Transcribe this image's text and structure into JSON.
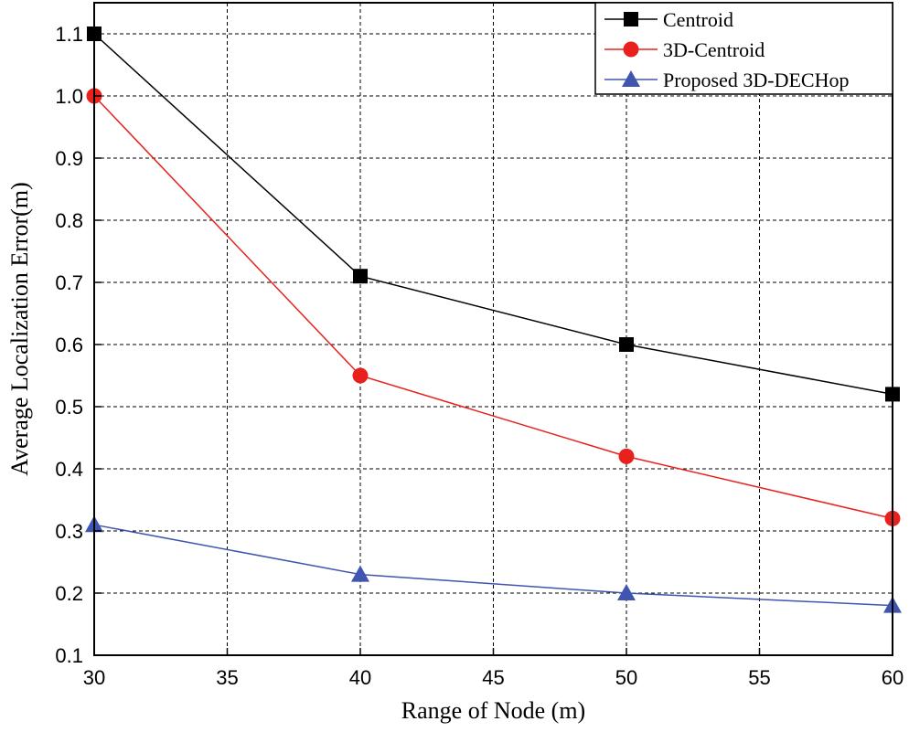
{
  "chart_data": {
    "type": "line",
    "title": "",
    "xlabel": "Range of Node (m)",
    "ylabel": "Average Localization Error(m)",
    "xlim": [
      30,
      60
    ],
    "ylim": [
      0.1,
      1.15
    ],
    "grid": true,
    "legend_position": "top-right",
    "xticks": [
      "30",
      "35",
      "40",
      "45",
      "50",
      "55",
      "60"
    ],
    "yticks": [
      "0.1",
      "0.2",
      "0.3",
      "0.4",
      "0.5",
      "0.6",
      "0.7",
      "0.8",
      "0.9",
      "1.0",
      "1.1"
    ],
    "x": [
      30,
      40,
      50,
      60
    ],
    "series": [
      {
        "name": "Centroid",
        "values": [
          1.1,
          0.71,
          0.6,
          0.52
        ],
        "color": "#000000",
        "marker": "square"
      },
      {
        "name": "3D-Centroid",
        "values": [
          1.0,
          0.55,
          0.42,
          0.32
        ],
        "color": "#e8211d",
        "marker": "circle"
      },
      {
        "name": "Proposed 3D-DECHop",
        "values": [
          0.31,
          0.23,
          0.2,
          0.18
        ],
        "color": "#3f55b0",
        "marker": "triangle"
      }
    ]
  }
}
